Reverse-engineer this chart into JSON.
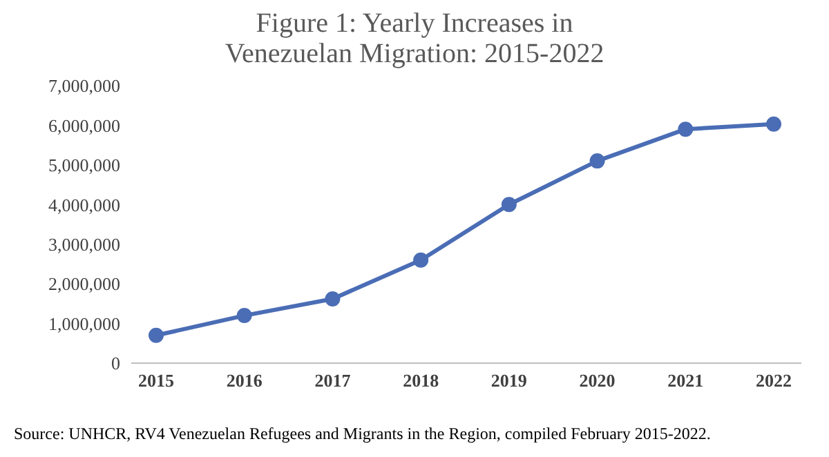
{
  "chart_data": {
    "type": "line",
    "title": "Figure 1: Yearly Increases in Venezuelan Migration: 2015-2022",
    "categories": [
      "2015",
      "2016",
      "2017",
      "2018",
      "2019",
      "2020",
      "2021",
      "2022"
    ],
    "series": [
      {
        "color": "#4a6db5",
        "values": [
          700000,
          1200000,
          1620000,
          2600000,
          4000000,
          5100000,
          5900000,
          6030000
        ]
      }
    ],
    "ylim": [
      0,
      7000000
    ],
    "yticks": [
      {
        "value": 0,
        "label": "0"
      },
      {
        "value": 1000000,
        "label": "1,000,000"
      },
      {
        "value": 2000000,
        "label": "2,000,000"
      },
      {
        "value": 3000000,
        "label": "3,000,000"
      },
      {
        "value": 4000000,
        "label": "4,000,000"
      },
      {
        "value": 5000000,
        "label": "5,000,000"
      },
      {
        "value": 6000000,
        "label": "6,000,000"
      },
      {
        "value": 7000000,
        "label": "7,000,000"
      }
    ],
    "grid": false,
    "legend": false,
    "marker": "circle",
    "line_style": "solid",
    "annotations": [
      "Source: UNHCR, RV4 Venezuelan Refugees and Migrants in the Region, compiled February 2015-2022."
    ]
  }
}
